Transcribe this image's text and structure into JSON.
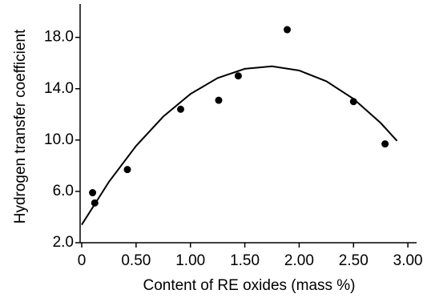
{
  "chart_data": {
    "type": "scatter",
    "x_label": "Content of RE oxides (mass %)",
    "y_label": "Hydrogen transfer coefficient",
    "xlim": [
      0,
      3.08
    ],
    "ylim": [
      2,
      20.6
    ],
    "xticks": [
      0,
      {
        "value": 0.5,
        "label": "0.50"
      },
      {
        "value": 1,
        "label": "1.00"
      },
      {
        "value": 1.5,
        "label": "1.50"
      },
      {
        "value": 2,
        "label": "2.00"
      },
      {
        "value": 2.5,
        "label": "2.50"
      },
      {
        "value": 3,
        "label": "3.00"
      }
    ],
    "yticks": [
      {
        "value": 2,
        "label": "2.0"
      },
      {
        "value": 6,
        "label": "6.0"
      },
      {
        "value": 10,
        "label": "10.0"
      },
      {
        "value": 14,
        "label": "14.0"
      },
      {
        "value": 18,
        "label": "18.0"
      }
    ],
    "series": [
      {
        "type": "scatter",
        "color": "#000000",
        "x": [
          0.1,
          0.12,
          0.42,
          0.91,
          1.26,
          1.44,
          1.89,
          2.5,
          2.79
        ],
        "values": [
          5.9,
          5.1,
          7.7,
          12.4,
          13.1,
          15.0,
          18.6,
          13.0,
          9.7
        ]
      },
      {
        "type": "line",
        "color": "#000000",
        "x": [
          0,
          0.25,
          0.5,
          0.75,
          1.0,
          1.25,
          1.5,
          1.75,
          2.0,
          2.25,
          2.5,
          2.75,
          2.9
        ],
        "values": [
          3.4,
          6.74,
          9.54,
          11.83,
          13.59,
          14.83,
          15.55,
          15.75,
          15.42,
          14.58,
          13.21,
          11.33,
          9.94
        ]
      }
    ]
  }
}
